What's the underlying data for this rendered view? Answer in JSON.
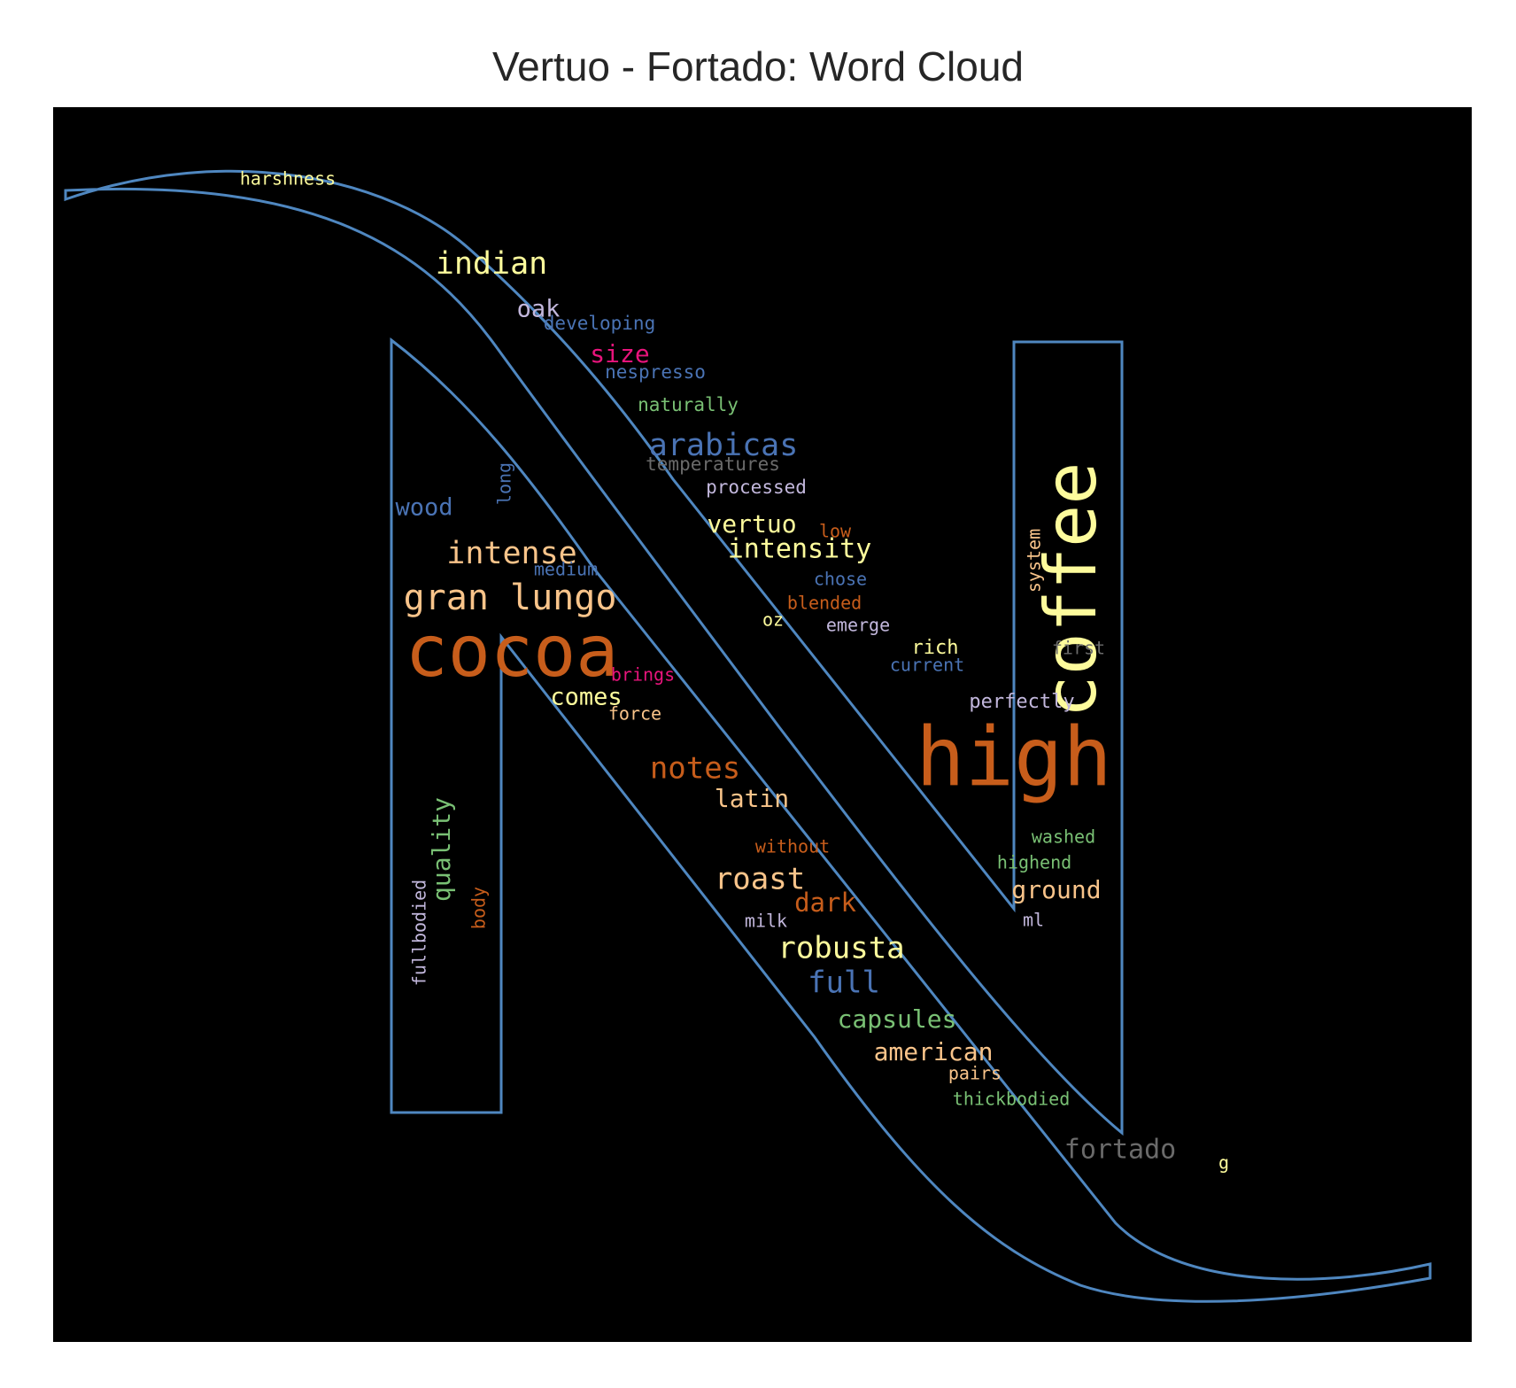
{
  "title": "Vertuo - Fortado: Word Cloud",
  "colors": {
    "background": "#000000",
    "outline": "#4f87c0",
    "title": "#262626"
  },
  "palette": {
    "yellow": "#fdfb9c",
    "orange": "#c75d1b",
    "peach": "#f9c48a",
    "blue": "#4a73b4",
    "lavender": "#c2b7dc",
    "green": "#79c074",
    "magenta": "#e8147c",
    "gray": "#6a6a6a"
  },
  "words": [
    {
      "text": "coffee",
      "color": "yellow",
      "weight": 1.0
    },
    {
      "text": "high",
      "color": "orange",
      "weight": 0.95
    },
    {
      "text": "cocoa",
      "color": "orange",
      "weight": 0.9
    },
    {
      "text": "gran lungo",
      "color": "peach",
      "weight": 0.55
    },
    {
      "text": "intense",
      "color": "peach",
      "weight": 0.45
    },
    {
      "text": "indian",
      "color": "yellow",
      "weight": 0.45
    },
    {
      "text": "arabicas",
      "color": "blue",
      "weight": 0.45
    },
    {
      "text": "notes",
      "color": "orange",
      "weight": 0.42
    },
    {
      "text": "roast",
      "color": "peach",
      "weight": 0.42
    },
    {
      "text": "robusta",
      "color": "yellow",
      "weight": 0.42
    },
    {
      "text": "full",
      "color": "blue",
      "weight": 0.42
    },
    {
      "text": "quality",
      "color": "green",
      "weight": 0.38
    },
    {
      "text": "intensity",
      "color": "yellow",
      "weight": 0.38
    },
    {
      "text": "vertuo",
      "color": "yellow",
      "weight": 0.36
    },
    {
      "text": "latin",
      "color": "peach",
      "weight": 0.36
    },
    {
      "text": "american",
      "color": "peach",
      "weight": 0.36
    },
    {
      "text": "capsules",
      "color": "green",
      "weight": 0.34
    },
    {
      "text": "fortado",
      "color": "gray",
      "weight": 0.34
    },
    {
      "text": "ground",
      "color": "peach",
      "weight": 0.34
    },
    {
      "text": "dark",
      "color": "orange",
      "weight": 0.34
    },
    {
      "text": "comes",
      "color": "yellow",
      "weight": 0.33
    },
    {
      "text": "size",
      "color": "magenta",
      "weight": 0.33
    },
    {
      "text": "oak",
      "color": "lavender",
      "weight": 0.33
    },
    {
      "text": "wood",
      "color": "blue",
      "weight": 0.33
    },
    {
      "text": "fullbodied",
      "color": "lavender",
      "weight": 0.28
    },
    {
      "text": "perfectly",
      "color": "lavender",
      "weight": 0.28
    },
    {
      "text": "rich",
      "color": "yellow",
      "weight": 0.28
    },
    {
      "text": "naturally",
      "color": "green",
      "weight": 0.26
    },
    {
      "text": "processed",
      "color": "lavender",
      "weight": 0.26
    },
    {
      "text": "temperatures",
      "color": "gray",
      "weight": 0.26
    },
    {
      "text": "nespresso",
      "color": "blue",
      "weight": 0.26
    },
    {
      "text": "developing",
      "color": "blue",
      "weight": 0.26
    },
    {
      "text": "harshness",
      "color": "yellow",
      "weight": 0.24
    },
    {
      "text": "long",
      "color": "blue",
      "weight": 0.24
    },
    {
      "text": "medium",
      "color": "blue",
      "weight": 0.24
    },
    {
      "text": "low",
      "color": "orange",
      "weight": 0.24
    },
    {
      "text": "chose",
      "color": "blue",
      "weight": 0.24
    },
    {
      "text": "blended",
      "color": "orange",
      "weight": 0.24
    },
    {
      "text": "emerge",
      "color": "lavender",
      "weight": 0.24
    },
    {
      "text": "oz",
      "color": "yellow",
      "weight": 0.24
    },
    {
      "text": "current",
      "color": "blue",
      "weight": 0.24
    },
    {
      "text": "system",
      "color": "peach",
      "weight": 0.24
    },
    {
      "text": "first",
      "color": "gray",
      "weight": 0.24
    },
    {
      "text": "brings",
      "color": "magenta",
      "weight": 0.24
    },
    {
      "text": "force",
      "color": "peach",
      "weight": 0.24
    },
    {
      "text": "without",
      "color": "orange",
      "weight": 0.24
    },
    {
      "text": "washed",
      "color": "green",
      "weight": 0.24
    },
    {
      "text": "highend",
      "color": "green",
      "weight": 0.24
    },
    {
      "text": "milk",
      "color": "lavender",
      "weight": 0.24
    },
    {
      "text": "ml",
      "color": "lavender",
      "weight": 0.24
    },
    {
      "text": "body",
      "color": "orange",
      "weight": 0.24
    },
    {
      "text": "pairs",
      "color": "peach",
      "weight": 0.24
    },
    {
      "text": "thickbodied",
      "color": "green",
      "weight": 0.24
    },
    {
      "text": "g",
      "color": "yellow",
      "weight": 0.22
    }
  ]
}
